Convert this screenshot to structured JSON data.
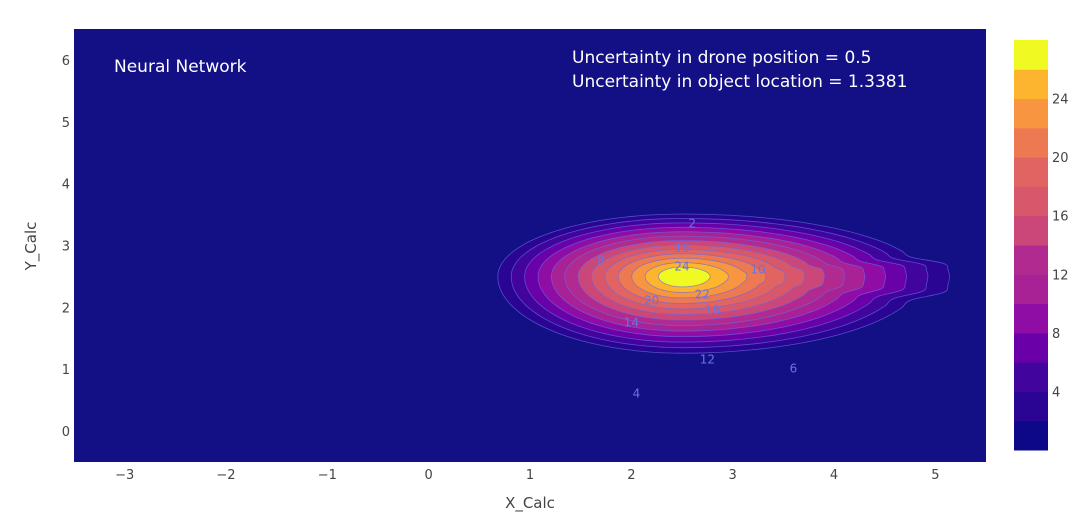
{
  "chart_data": {
    "type": "contour",
    "xlabel": "X_Calc",
    "ylabel": "Y_Calc",
    "xlim": [
      -3.5,
      5.5
    ],
    "ylim": [
      -0.5,
      6.5
    ],
    "x_ticks": [
      -3,
      -2,
      -1,
      0,
      1,
      2,
      3,
      4,
      5
    ],
    "y_ticks": [
      0,
      1,
      2,
      3,
      4,
      5,
      6
    ],
    "peak": {
      "x": 2.5,
      "y": 2.5,
      "z": 26
    },
    "contour_levels": [
      2,
      4,
      6,
      8,
      10,
      12,
      14,
      16,
      18,
      20,
      22,
      24,
      26
    ],
    "contour_labels": [
      {
        "text": "2",
        "x": 2.6,
        "y": 3.35
      },
      {
        "text": "4",
        "x": 2.05,
        "y": 0.6
      },
      {
        "text": "6",
        "x": 3.6,
        "y": 1.0
      },
      {
        "text": "8",
        "x": 1.7,
        "y": 2.75
      },
      {
        "text": "10",
        "x": 3.25,
        "y": 2.6
      },
      {
        "text": "12",
        "x": 2.75,
        "y": 1.15
      },
      {
        "text": "14",
        "x": 2.0,
        "y": 1.75
      },
      {
        "text": "16",
        "x": 2.5,
        "y": 2.95
      },
      {
        "text": "18",
        "x": 2.8,
        "y": 1.95
      },
      {
        "text": "20",
        "x": 2.2,
        "y": 2.1
      },
      {
        "text": "22",
        "x": 2.7,
        "y": 2.2
      },
      {
        "text": "24",
        "x": 2.5,
        "y": 2.65
      }
    ],
    "colorbar": {
      "ticks": [
        4,
        8,
        12,
        16,
        20,
        24
      ],
      "range": [
        0,
        28
      ],
      "colors": [
        "#0d0887",
        "#2a0593",
        "#41049d",
        "#6a00a8",
        "#8f0da4",
        "#a82296",
        "#b12a90",
        "#cb4679",
        "#d8576b",
        "#e16462",
        "#ed7953",
        "#f89540",
        "#fdb42f",
        "#f0f921"
      ]
    },
    "background_color": "#130f84",
    "title": "Neural Network",
    "annotations": [
      "Uncertainty in drone position  = 0.5",
      "Uncertainty in object location = 1.3381"
    ]
  }
}
